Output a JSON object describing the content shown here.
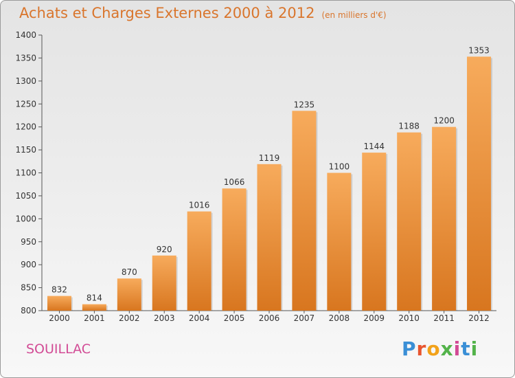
{
  "title": "Achats et Charges Externes 2000 à 2012",
  "subtitle": "(en milliers d'€)",
  "city": "SOUILLAC",
  "logo": {
    "letters": [
      "P",
      "r",
      "o",
      "x",
      "i",
      "t",
      "i"
    ],
    "colors": [
      "#3a8fd6",
      "#e8552f",
      "#f2a21a",
      "#53b34a",
      "#d24b95",
      "#3a8fd6",
      "#53b34a"
    ]
  },
  "colors": {
    "bar_light": "#f6a85a",
    "bar_dark": "#e0822c",
    "title": "#d9752c",
    "city": "#d24b95"
  },
  "chart_data": {
    "type": "bar",
    "categories": [
      "2000",
      "2001",
      "2002",
      "2003",
      "2004",
      "2005",
      "2006",
      "2007",
      "2008",
      "2009",
      "2010",
      "2011",
      "2012"
    ],
    "values": [
      832,
      814,
      870,
      920,
      1016,
      1066,
      1119,
      1235,
      1100,
      1144,
      1188,
      1200,
      1353
    ],
    "title": "Achats et Charges Externes 2000 à 2012",
    "xlabel": "",
    "ylabel": "",
    "ylim": [
      800,
      1400
    ],
    "yticks": [
      800,
      850,
      900,
      950,
      1000,
      1050,
      1100,
      1150,
      1200,
      1250,
      1300,
      1350,
      1400
    ],
    "grid": false,
    "legend": "none"
  }
}
